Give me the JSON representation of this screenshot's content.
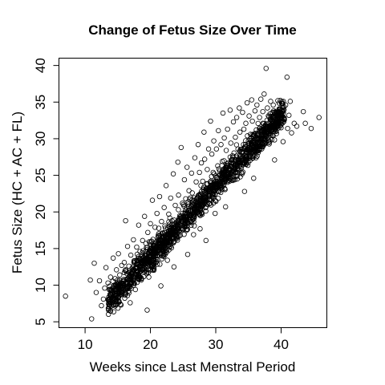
{
  "chart_data": {
    "type": "scatter",
    "title": "Change of Fetus Size Over Time",
    "xlabel": "Weeks since Last Menstral Period",
    "ylabel": "Fetus Size (HC + AC + FL)",
    "xlim": [
      6,
      47
    ],
    "ylim": [
      4.2,
      41
    ],
    "xticks": [
      10,
      20,
      30,
      40
    ],
    "yticks": [
      5,
      10,
      15,
      20,
      25,
      30,
      35,
      40
    ],
    "grid": false,
    "legend": "none",
    "marker": "open-circle",
    "point_color": "#000000",
    "points": [
      [
        7,
        8.5
      ],
      [
        11,
        5.4
      ],
      [
        10.8,
        10.7
      ],
      [
        11.4,
        13
      ],
      [
        12.2,
        10.6
      ],
      [
        11.7,
        9
      ],
      [
        12.5,
        7.2
      ],
      [
        12.8,
        8.1
      ],
      [
        13,
        9.6
      ],
      [
        13.2,
        12.4
      ],
      [
        13.5,
        10.3
      ],
      [
        13.7,
        7.8
      ],
      [
        13.9,
        11.1
      ],
      [
        14.1,
        9.2
      ],
      [
        14.3,
        13.7
      ],
      [
        14.4,
        8.4
      ],
      [
        14.6,
        10.9
      ],
      [
        14.8,
        12.1
      ],
      [
        15,
        9.6
      ],
      [
        15.1,
        14.3
      ],
      [
        15.3,
        11.4
      ],
      [
        15.5,
        7.3
      ],
      [
        15.6,
        12.7
      ],
      [
        15.8,
        10.2
      ],
      [
        16,
        13.1
      ],
      [
        16.2,
        18.8
      ],
      [
        16.3,
        11.9
      ],
      [
        16.5,
        15.3
      ],
      [
        16.7,
        12.6
      ],
      [
        16.9,
        7.6
      ],
      [
        17,
        14.1
      ],
      [
        17.2,
        11.8
      ],
      [
        17.4,
        16.2
      ],
      [
        17.6,
        13.3
      ],
      [
        17.7,
        9.4
      ],
      [
        17.9,
        15.2
      ],
      [
        18.1,
        12.9
      ],
      [
        18.2,
        18.2
      ],
      [
        18.4,
        14.6
      ],
      [
        18.6,
        10.7
      ],
      [
        18.8,
        16.1
      ],
      [
        19,
        13.8
      ],
      [
        19.1,
        19.4
      ],
      [
        19.3,
        15.7
      ],
      [
        19.5,
        6.6
      ],
      [
        19.6,
        17.2
      ],
      [
        19.8,
        14.3
      ],
      [
        20,
        18.4
      ],
      [
        20.2,
        16
      ],
      [
        20.3,
        21.6
      ],
      [
        20.5,
        12.3
      ],
      [
        20.7,
        17.9
      ],
      [
        20.9,
        15.1
      ],
      [
        21,
        19.8
      ],
      [
        21.2,
        16.8
      ],
      [
        21.4,
        22.1
      ],
      [
        21.6,
        9.9
      ],
      [
        21.7,
        18.7
      ],
      [
        21.9,
        16.2
      ],
      [
        22.1,
        20.6
      ],
      [
        22.3,
        17.8
      ],
      [
        22.4,
        23.6
      ],
      [
        22.6,
        13.4
      ],
      [
        22.8,
        19.7
      ],
      [
        23,
        17.2
      ],
      [
        23.1,
        21.9
      ],
      [
        23.3,
        18.8
      ],
      [
        23.5,
        25.2
      ],
      [
        23.6,
        12.5
      ],
      [
        23.8,
        20.9
      ],
      [
        24,
        18.6
      ],
      [
        24.2,
        26.8
      ],
      [
        24.3,
        22.3
      ],
      [
        24.5,
        19.5
      ],
      [
        24.7,
        28.8
      ],
      [
        24.9,
        21.2
      ],
      [
        25,
        17.6
      ],
      [
        25.2,
        24.4
      ],
      [
        25.4,
        21.8
      ],
      [
        25.6,
        26.1
      ],
      [
        25.7,
        14.2
      ],
      [
        25.9,
        22.9
      ],
      [
        26.1,
        20.2
      ],
      [
        26.3,
        25.3
      ],
      [
        26.4,
        22.6
      ],
      [
        26.6,
        16.9
      ],
      [
        26.8,
        27.4
      ],
      [
        27,
        24.1
      ],
      [
        27.1,
        21.5
      ],
      [
        27.3,
        29.2
      ],
      [
        27.5,
        25.4
      ],
      [
        27.6,
        17.7
      ],
      [
        27.8,
        26.7
      ],
      [
        28,
        24.2
      ],
      [
        28.2,
        30.9
      ],
      [
        28.3,
        27.2
      ],
      [
        28.5,
        16.1
      ],
      [
        28.7,
        25.8
      ],
      [
        28.9,
        28.6
      ],
      [
        29,
        22.9
      ],
      [
        29.2,
        32.4
      ],
      [
        29.4,
        27.9
      ],
      [
        29.6,
        25.4
      ],
      [
        29.7,
        29.7
      ],
      [
        29.9,
        19.8
      ],
      [
        30.1,
        28.6
      ],
      [
        30.3,
        26.3
      ],
      [
        30.4,
        31.1
      ],
      [
        30.6,
        23.9
      ],
      [
        30.8,
        29.2
      ],
      [
        31,
        26.9
      ],
      [
        31.1,
        33.5
      ],
      [
        31.3,
        30.1
      ],
      [
        31.5,
        20.7
      ],
      [
        31.6,
        28.4
      ],
      [
        31.8,
        31.3
      ],
      [
        32,
        25.9
      ],
      [
        32.2,
        33.9
      ],
      [
        32.3,
        29.4
      ],
      [
        32.5,
        27.1
      ],
      [
        32.7,
        32.3
      ],
      [
        32.9,
        24.4
      ],
      [
        33,
        30.2
      ],
      [
        33.2,
        32.9
      ],
      [
        33.4,
        28.6
      ],
      [
        33.6,
        34.2
      ],
      [
        33.7,
        30.9
      ],
      [
        33.9,
        26.2
      ],
      [
        34.1,
        33.6
      ],
      [
        34.3,
        31.3
      ],
      [
        34.4,
        22.8
      ],
      [
        34.6,
        32.1
      ],
      [
        34.8,
        34.9
      ],
      [
        35,
        29.7
      ],
      [
        35.1,
        33.1
      ],
      [
        35.3,
        30.6
      ],
      [
        35.5,
        35.3
      ],
      [
        35.6,
        32.4
      ],
      [
        35.8,
        24.6
      ],
      [
        36,
        33.8
      ],
      [
        36.2,
        31.2
      ],
      [
        36.3,
        34.6
      ],
      [
        36.5,
        28.1
      ],
      [
        36.7,
        32.9
      ],
      [
        36.9,
        35.4
      ],
      [
        37,
        30.4
      ],
      [
        37.2,
        33.7
      ],
      [
        37.4,
        36.1
      ],
      [
        37.6,
        31.9
      ],
      [
        37.7,
        39.6
      ],
      [
        37.9,
        34.2
      ],
      [
        38.1,
        29.8
      ],
      [
        38.3,
        33.4
      ],
      [
        38.4,
        35.1
      ],
      [
        38.6,
        31.2
      ],
      [
        38.8,
        34.6
      ],
      [
        39,
        27.1
      ],
      [
        39.1,
        33.3
      ],
      [
        39.3,
        30.7
      ],
      [
        39.5,
        35.2
      ],
      [
        39.6,
        32.4
      ],
      [
        39.8,
        34.1
      ],
      [
        40,
        31.5
      ],
      [
        40.2,
        33.9
      ],
      [
        40.3,
        29.6
      ],
      [
        40.5,
        32.6
      ],
      [
        40.7,
        34.6
      ],
      [
        40.9,
        38.4
      ],
      [
        41,
        31.4
      ],
      [
        41.2,
        33.2
      ],
      [
        41.4,
        35.1
      ],
      [
        41.6,
        30.8
      ],
      [
        42,
        32.1
      ],
      [
        42.4,
        31.7
      ],
      [
        43.4,
        33.7
      ],
      [
        43.7,
        32.1
      ],
      [
        44.6,
        31.4
      ],
      [
        45.8,
        32.9
      ]
    ]
  }
}
